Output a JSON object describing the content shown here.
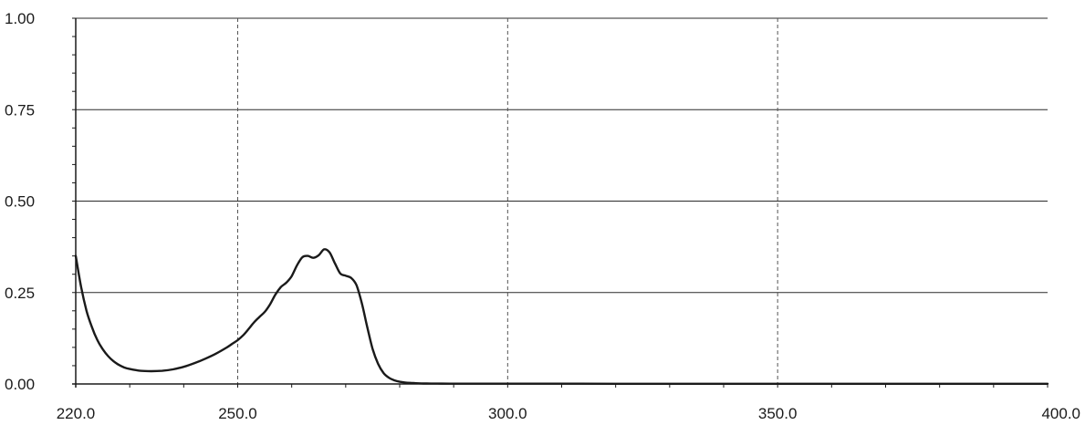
{
  "chart_data": {
    "type": "line",
    "title": "",
    "xlabel": "",
    "ylabel": "",
    "xlim": [
      220,
      400
    ],
    "ylim": [
      0,
      1
    ],
    "x_ticks": [
      {
        "value": 220,
        "label": "220.0"
      },
      {
        "value": 250,
        "label": "250.0"
      },
      {
        "value": 300,
        "label": "300.0"
      },
      {
        "value": 350,
        "label": "350.0"
      },
      {
        "value": 400,
        "label": "400.0"
      }
    ],
    "y_ticks": [
      {
        "value": 0,
        "label": "0.00"
      },
      {
        "value": 0.25,
        "label": "0.25"
      },
      {
        "value": 0.5,
        "label": "0.50"
      },
      {
        "value": 0.75,
        "label": "0.75"
      },
      {
        "value": 1,
        "label": "1.00"
      }
    ],
    "x_minor_step": 10,
    "y_minor_step": 0.05,
    "horizontal_grid": "solid",
    "vertical_grid": "dashed",
    "legend": "none",
    "line_color": "#1a1a1a",
    "series": [
      {
        "x": [
          220,
          221,
          222,
          223,
          224,
          225,
          226,
          227,
          228,
          229,
          230,
          232,
          234,
          236,
          238,
          240,
          242,
          244,
          246,
          248,
          249,
          250,
          251,
          252,
          253,
          254,
          255,
          256,
          257,
          258,
          259,
          260,
          261,
          262,
          263,
          264,
          265,
          266,
          267,
          268,
          269,
          270,
          271,
          272,
          273,
          274,
          275,
          276,
          277,
          278,
          279,
          280,
          281,
          282,
          283,
          284,
          285,
          287,
          290,
          300,
          320,
          340,
          360,
          380,
          400
        ],
        "y": [
          0.35,
          0.265,
          0.2,
          0.155,
          0.12,
          0.095,
          0.076,
          0.062,
          0.052,
          0.045,
          0.041,
          0.036,
          0.035,
          0.036,
          0.04,
          0.047,
          0.057,
          0.069,
          0.083,
          0.1,
          0.11,
          0.12,
          0.133,
          0.15,
          0.168,
          0.183,
          0.197,
          0.218,
          0.245,
          0.265,
          0.277,
          0.295,
          0.325,
          0.347,
          0.35,
          0.345,
          0.352,
          0.368,
          0.36,
          0.33,
          0.302,
          0.296,
          0.29,
          0.27,
          0.22,
          0.155,
          0.095,
          0.055,
          0.03,
          0.017,
          0.01,
          0.006,
          0.004,
          0.003,
          0.002,
          0.0015,
          0.0012,
          0.001,
          0.0008,
          0.0008,
          0.0006,
          0.0005,
          0.0005,
          0.0004,
          0.0004
        ]
      }
    ]
  }
}
